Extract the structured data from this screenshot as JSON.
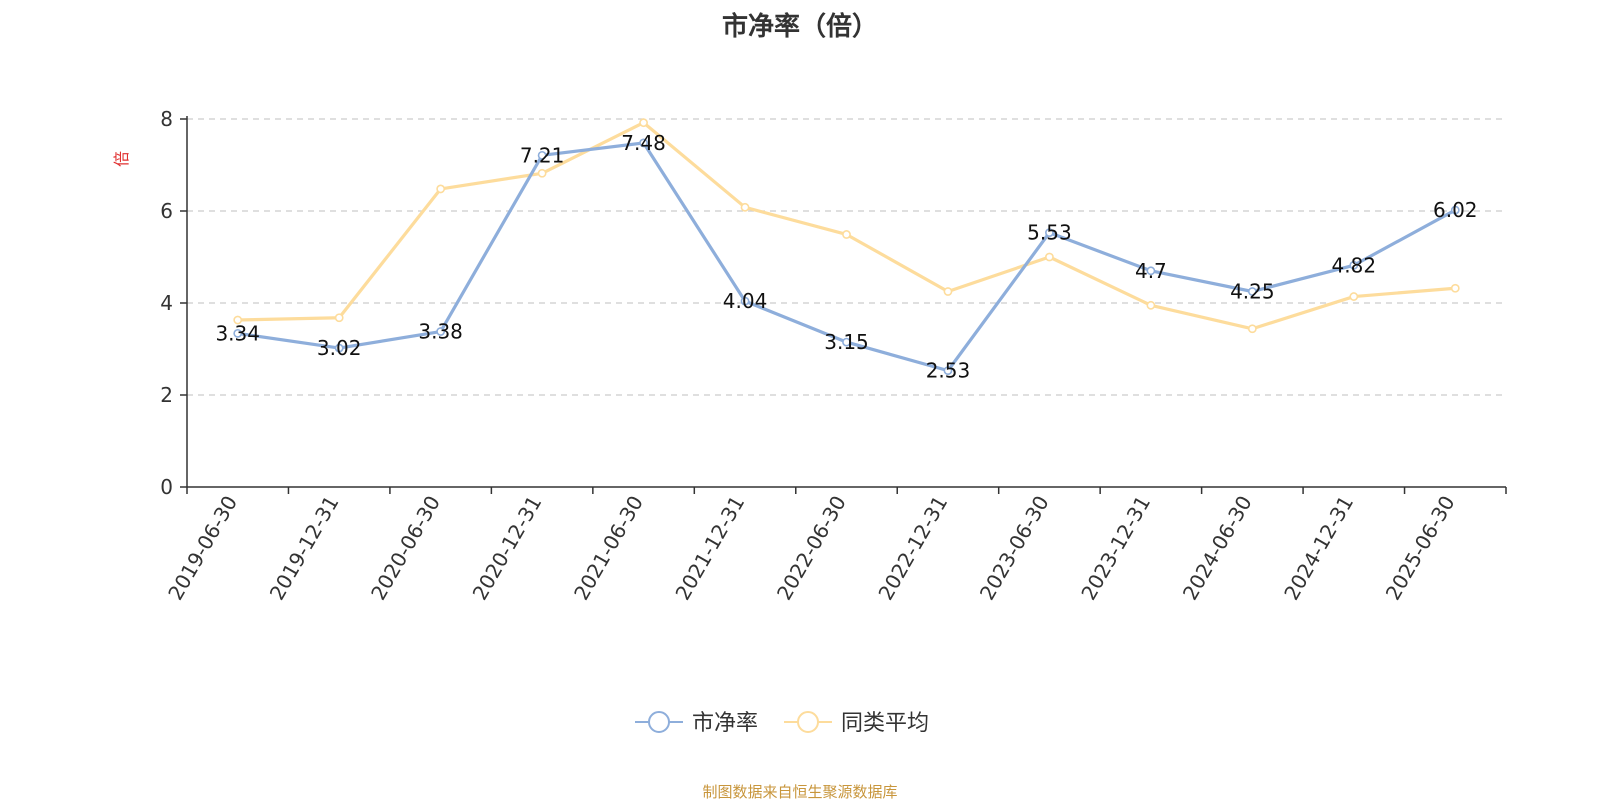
{
  "chart_data": {
    "type": "line",
    "title": "市净率（倍）",
    "ylabel": "倍",
    "ylim": [
      0,
      8
    ],
    "yticks": [
      0,
      2,
      4,
      6,
      8
    ],
    "grid": true,
    "legend_position": "bottom-center",
    "categories": [
      "2019-06-30",
      "2019-12-31",
      "2020-06-30",
      "2020-12-31",
      "2021-06-30",
      "2021-12-31",
      "2022-06-30",
      "2022-12-31",
      "2023-06-30",
      "2023-12-31",
      "2024-06-30",
      "2024-12-31",
      "2025-06-30"
    ],
    "series": [
      {
        "name": "市净率",
        "color": "#8eaedb",
        "values": [
          3.34,
          3.02,
          3.38,
          7.21,
          7.48,
          4.04,
          3.15,
          2.53,
          5.53,
          4.7,
          4.25,
          4.82,
          6.02
        ],
        "labels": [
          "3.34",
          "3.02",
          "3.38",
          "7.21",
          "7.48",
          "4.04",
          "3.15",
          "2.53",
          "5.53",
          "4.7",
          "4.25",
          "4.82",
          "6.02"
        ]
      },
      {
        "name": "同类平均",
        "color": "#fddc9c",
        "values": [
          3.63,
          3.68,
          6.48,
          6.82,
          7.92,
          6.08,
          5.49,
          4.25,
          5.0,
          3.95,
          3.44,
          4.14,
          4.32
        ]
      }
    ]
  },
  "footer": {
    "source": "制图数据来自恒生聚源数据库"
  }
}
